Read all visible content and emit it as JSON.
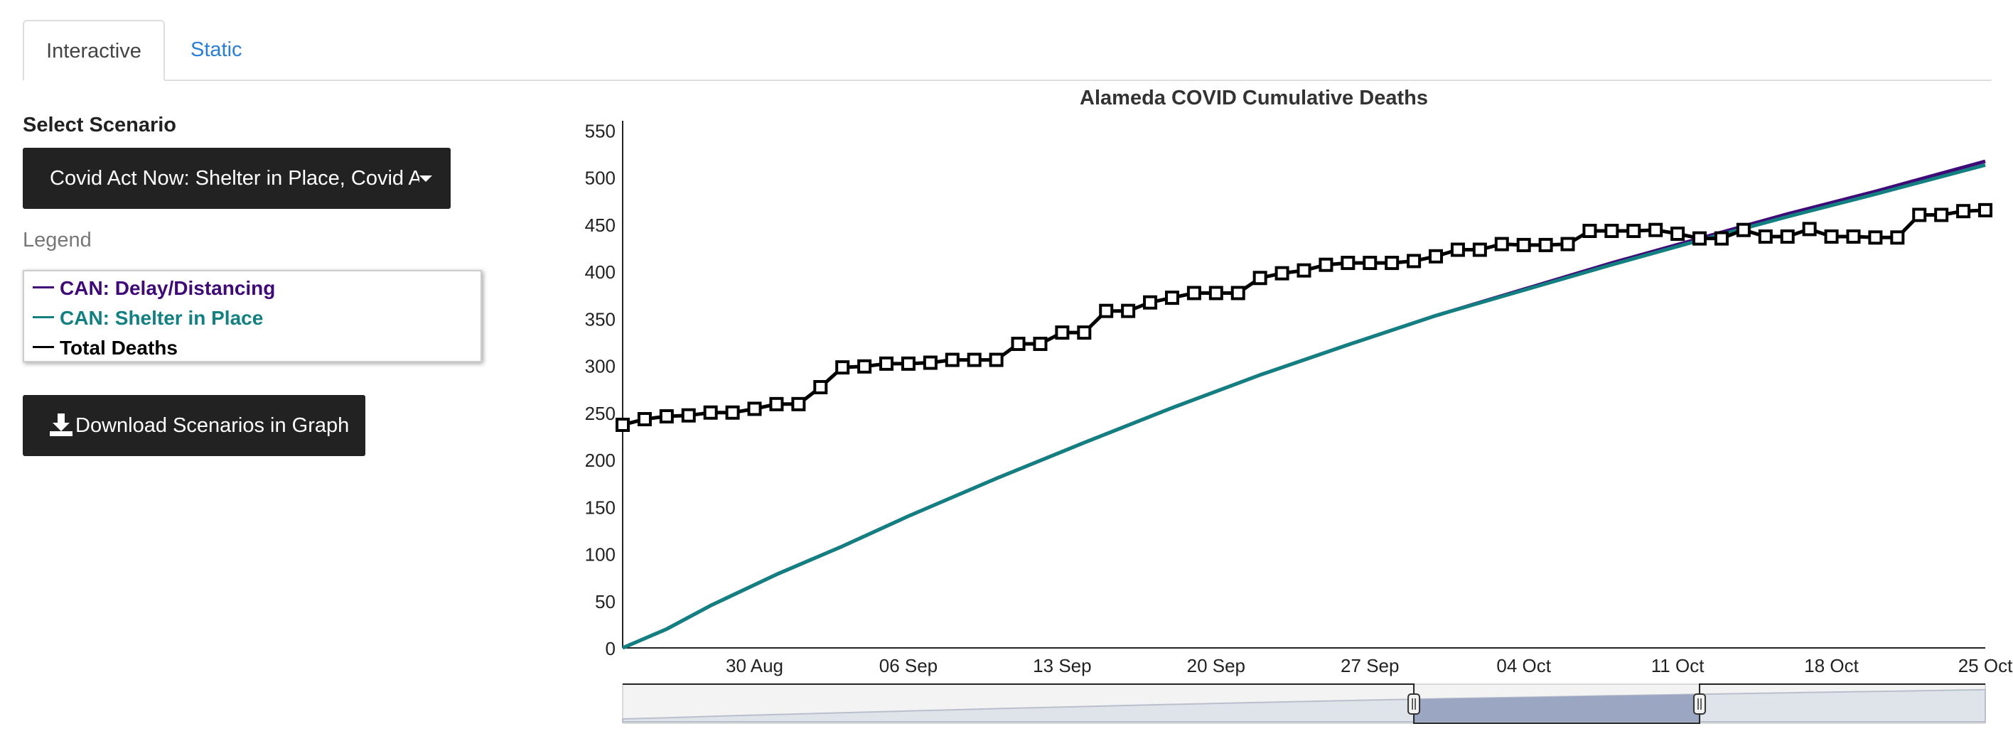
{
  "tabs": {
    "interactive": "Interactive",
    "static": "Static"
  },
  "sidebar": {
    "select_label": "Select Scenario",
    "scenario_value": "Covid Act Now: Shelter in Place, Covid Act Now: Delay/Distancing",
    "legend_label": "Legend",
    "download_label": "Download Scenarios in Graph"
  },
  "legend": [
    {
      "label": "CAN: Delay/Distancing",
      "color": "#3f0a78"
    },
    {
      "label": "CAN: Shelter in Place",
      "color": "#128080"
    },
    {
      "label": "Total Deaths",
      "color": "#000000"
    }
  ],
  "colors": {
    "button_bg": "#222222",
    "tab_link": "#2a7fd4",
    "navigator_fill": "#9aa6c2"
  },
  "chart_data": {
    "type": "line",
    "title": "Alameda COVID Cumulative Deaths",
    "xlabel": "",
    "ylabel": "",
    "x_range": [
      "2020-08-24",
      "2020-10-25"
    ],
    "ylim": [
      0,
      560
    ],
    "y_ticks": [
      0,
      50,
      100,
      150,
      200,
      250,
      300,
      350,
      400,
      450,
      500,
      550
    ],
    "x_ticks": [
      {
        "date": "2020-08-30",
        "label": "30 Aug"
      },
      {
        "date": "2020-09-06",
        "label": "06 Sep"
      },
      {
        "date": "2020-09-13",
        "label": "13 Sep"
      },
      {
        "date": "2020-09-20",
        "label": "20 Sep"
      },
      {
        "date": "2020-09-27",
        "label": "27 Sep"
      },
      {
        "date": "2020-10-04",
        "label": "04 Oct"
      },
      {
        "date": "2020-10-11",
        "label": "11 Oct"
      },
      {
        "date": "2020-10-18",
        "label": "18 Oct"
      },
      {
        "date": "2020-10-25",
        "label": "25 Oct"
      }
    ],
    "grid": false,
    "navigator": {
      "selected_start": "2020-09-29",
      "selected_end": "2020-10-12"
    },
    "series": [
      {
        "name": "CAN: Delay/Distancing",
        "color": "#3f0a78",
        "marker": "none",
        "points": [
          [
            "2020-08-24",
            0
          ],
          [
            "2020-08-26",
            20
          ],
          [
            "2020-08-28",
            45
          ],
          [
            "2020-08-31",
            78
          ],
          [
            "2020-09-03",
            108
          ],
          [
            "2020-09-06",
            140
          ],
          [
            "2020-09-10",
            180
          ],
          [
            "2020-09-14",
            218
          ],
          [
            "2020-09-18",
            255
          ],
          [
            "2020-09-22",
            290
          ],
          [
            "2020-09-26",
            322
          ],
          [
            "2020-09-30",
            353
          ],
          [
            "2020-10-04",
            381
          ],
          [
            "2020-10-08",
            409
          ],
          [
            "2020-10-12",
            435
          ],
          [
            "2020-10-16",
            461
          ],
          [
            "2020-10-20",
            485
          ],
          [
            "2020-10-25",
            517
          ]
        ]
      },
      {
        "name": "CAN: Shelter in Place",
        "color": "#128080",
        "marker": "none",
        "points": [
          [
            "2020-08-24",
            0
          ],
          [
            "2020-08-26",
            20
          ],
          [
            "2020-08-28",
            45
          ],
          [
            "2020-08-31",
            78
          ],
          [
            "2020-09-03",
            108
          ],
          [
            "2020-09-06",
            140
          ],
          [
            "2020-09-10",
            180
          ],
          [
            "2020-09-14",
            218
          ],
          [
            "2020-09-18",
            255
          ],
          [
            "2020-09-22",
            290
          ],
          [
            "2020-09-26",
            322
          ],
          [
            "2020-09-30",
            353
          ],
          [
            "2020-10-04",
            380
          ],
          [
            "2020-10-08",
            407
          ],
          [
            "2020-10-12",
            433
          ],
          [
            "2020-10-16",
            458
          ],
          [
            "2020-10-20",
            482
          ],
          [
            "2020-10-25",
            513
          ]
        ]
      },
      {
        "name": "Total Deaths",
        "color": "#000000",
        "marker": "square",
        "points": [
          [
            "2020-08-24",
            237
          ],
          [
            "2020-08-25",
            243
          ],
          [
            "2020-08-26",
            246
          ],
          [
            "2020-08-27",
            247
          ],
          [
            "2020-08-28",
            250
          ],
          [
            "2020-08-29",
            250
          ],
          [
            "2020-08-30",
            254
          ],
          [
            "2020-08-31",
            259
          ],
          [
            "2020-09-01",
            259
          ],
          [
            "2020-09-02",
            277
          ],
          [
            "2020-09-03",
            298
          ],
          [
            "2020-09-04",
            299
          ],
          [
            "2020-09-05",
            302
          ],
          [
            "2020-09-06",
            302
          ],
          [
            "2020-09-07",
            303
          ],
          [
            "2020-09-08",
            306
          ],
          [
            "2020-09-09",
            306
          ],
          [
            "2020-09-10",
            306
          ],
          [
            "2020-09-11",
            323
          ],
          [
            "2020-09-12",
            323
          ],
          [
            "2020-09-13",
            335
          ],
          [
            "2020-09-14",
            335
          ],
          [
            "2020-09-15",
            358
          ],
          [
            "2020-09-16",
            358
          ],
          [
            "2020-09-17",
            367
          ],
          [
            "2020-09-18",
            372
          ],
          [
            "2020-09-19",
            377
          ],
          [
            "2020-09-20",
            377
          ],
          [
            "2020-09-21",
            377
          ],
          [
            "2020-09-22",
            393
          ],
          [
            "2020-09-23",
            398
          ],
          [
            "2020-09-24",
            401
          ],
          [
            "2020-09-25",
            407
          ],
          [
            "2020-09-26",
            409
          ],
          [
            "2020-09-27",
            409
          ],
          [
            "2020-09-28",
            409
          ],
          [
            "2020-09-29",
            411
          ],
          [
            "2020-09-30",
            416
          ],
          [
            "2020-10-01",
            423
          ],
          [
            "2020-10-02",
            423
          ],
          [
            "2020-10-03",
            429
          ],
          [
            "2020-10-04",
            428
          ],
          [
            "2020-10-05",
            428
          ],
          [
            "2020-10-06",
            429
          ],
          [
            "2020-10-07",
            443
          ],
          [
            "2020-10-08",
            443
          ],
          [
            "2020-10-09",
            443
          ],
          [
            "2020-10-10",
            444
          ],
          [
            "2020-10-11",
            440
          ],
          [
            "2020-10-12",
            435
          ],
          [
            "2020-10-13",
            435
          ],
          [
            "2020-10-14",
            444
          ],
          [
            "2020-10-15",
            437
          ],
          [
            "2020-10-16",
            437
          ],
          [
            "2020-10-17",
            445
          ],
          [
            "2020-10-18",
            437
          ],
          [
            "2020-10-19",
            437
          ],
          [
            "2020-10-20",
            436
          ],
          [
            "2020-10-21",
            436
          ],
          [
            "2020-10-22",
            460
          ],
          [
            "2020-10-23",
            460
          ],
          [
            "2020-10-24",
            464
          ],
          [
            "2020-10-25",
            465
          ]
        ]
      }
    ]
  }
}
